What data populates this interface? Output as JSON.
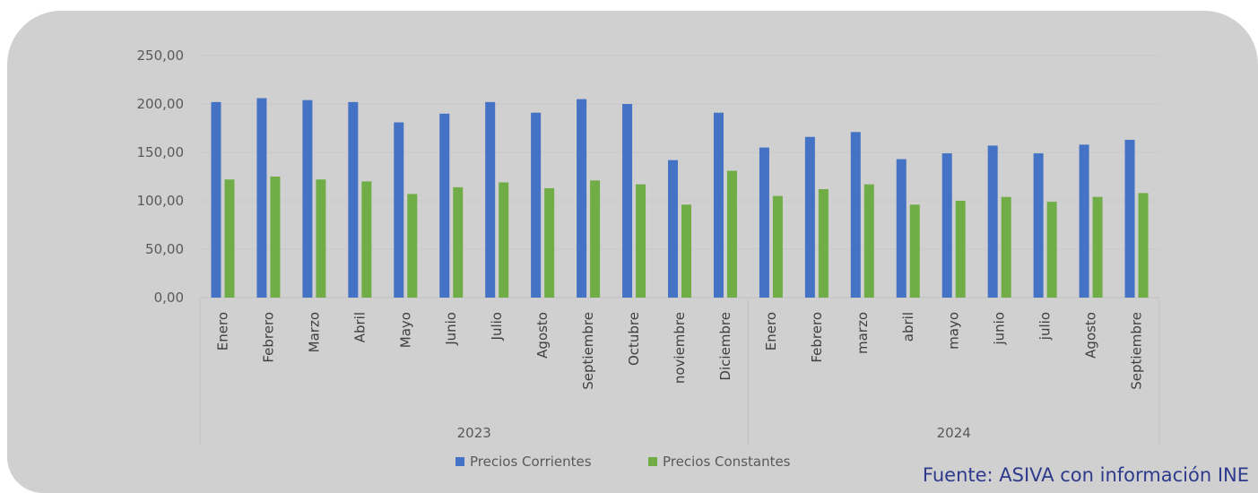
{
  "chart_data": {
    "type": "bar",
    "title": "",
    "xlabel": "",
    "ylabel": "",
    "ylim": [
      0,
      250
    ],
    "yticks": [
      0,
      50,
      100,
      150,
      200,
      250
    ],
    "ytick_labels": [
      "0,00",
      "50,00",
      "100,00",
      "150,00",
      "200,00",
      "250,00"
    ],
    "grid": true,
    "legend_position": "bottom",
    "groups": [
      {
        "label": "2023",
        "count": 12
      },
      {
        "label": "2024",
        "count": 9
      }
    ],
    "categories": [
      "Enero",
      "Febrero",
      "Marzo",
      "Abril",
      "Mayo",
      "Junio",
      "Julio",
      "Agosto",
      "Septiembre",
      "Octubre",
      "noviembre",
      "Diciembre",
      "Enero",
      "Febrero",
      "marzo",
      "abril",
      "mayo",
      "junio",
      "julio",
      "Agosto",
      "Septiembre"
    ],
    "series": [
      {
        "name": "Precios Corrientes",
        "color": "#4472c4",
        "values": [
          202,
          206,
          204,
          202,
          181,
          190,
          202,
          191,
          205,
          200,
          142,
          191,
          155,
          166,
          171,
          143,
          149,
          157,
          149,
          158,
          163
        ]
      },
      {
        "name": "Precios Constantes",
        "color": "#70ad47",
        "values": [
          122,
          125,
          122,
          120,
          107,
          114,
          119,
          113,
          121,
          117,
          96,
          131,
          105,
          112,
          117,
          96,
          100,
          104,
          99,
          104,
          108
        ]
      }
    ]
  },
  "source_note": "Fuente: ASIVA con información INE"
}
